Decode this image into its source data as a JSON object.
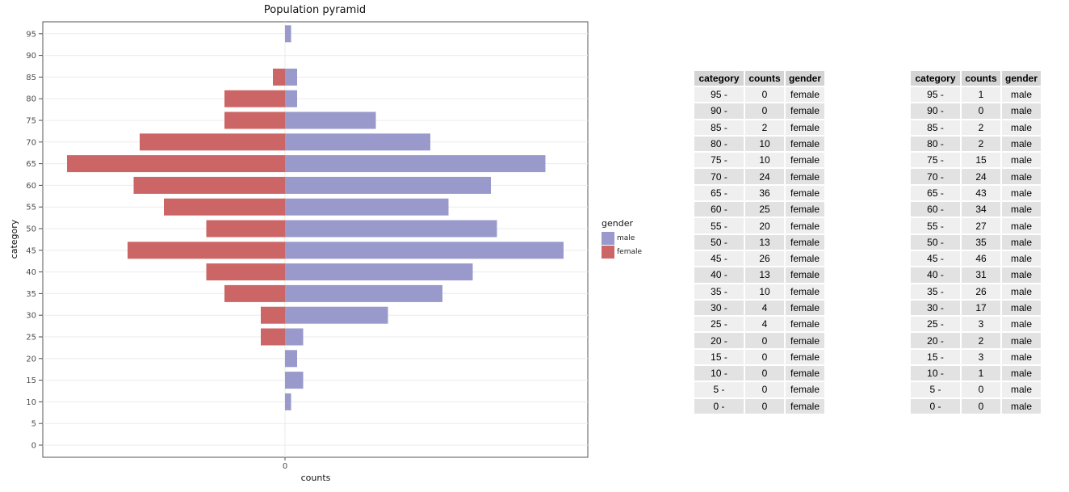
{
  "chart_data": {
    "type": "bar",
    "orientation": "horizontal",
    "title": "Population pyramid",
    "xlabel": "counts",
    "ylabel": "category",
    "xticks": [
      "0"
    ],
    "categories": [
      "0",
      "5",
      "10",
      "15",
      "20",
      "25",
      "30",
      "35",
      "40",
      "45",
      "50",
      "55",
      "60",
      "65",
      "70",
      "75",
      "80",
      "85",
      "90",
      "95"
    ],
    "series": [
      {
        "name": "female",
        "color": "#CC6666",
        "values": [
          0,
          0,
          0,
          0,
          0,
          4,
          4,
          10,
          13,
          26,
          13,
          20,
          25,
          36,
          24,
          10,
          10,
          2,
          0,
          0
        ]
      },
      {
        "name": "male",
        "color": "#9999CC",
        "values": [
          0,
          0,
          1,
          3,
          2,
          3,
          17,
          26,
          31,
          46,
          35,
          27,
          34,
          43,
          24,
          15,
          2,
          2,
          0,
          1
        ]
      }
    ],
    "legend": {
      "title": "gender",
      "entries": [
        "male",
        "female"
      ],
      "position": "right"
    },
    "grid": true
  },
  "tables": {
    "headers": [
      "category",
      "counts",
      "gender"
    ],
    "female": [
      [
        "95 -",
        "0",
        "female"
      ],
      [
        "90 -",
        "0",
        "female"
      ],
      [
        "85 -",
        "2",
        "female"
      ],
      [
        "80 -",
        "10",
        "female"
      ],
      [
        "75 -",
        "10",
        "female"
      ],
      [
        "70 -",
        "24",
        "female"
      ],
      [
        "65 -",
        "36",
        "female"
      ],
      [
        "60 -",
        "25",
        "female"
      ],
      [
        "55 -",
        "20",
        "female"
      ],
      [
        "50 -",
        "13",
        "female"
      ],
      [
        "45 -",
        "26",
        "female"
      ],
      [
        "40 -",
        "13",
        "female"
      ],
      [
        "35 -",
        "10",
        "female"
      ],
      [
        "30 -",
        "4",
        "female"
      ],
      [
        "25 -",
        "4",
        "female"
      ],
      [
        "20 -",
        "0",
        "female"
      ],
      [
        "15 -",
        "0",
        "female"
      ],
      [
        "10 -",
        "0",
        "female"
      ],
      [
        "5 -",
        "0",
        "female"
      ],
      [
        "0 -",
        "0",
        "female"
      ]
    ],
    "male": [
      [
        "95 -",
        "1",
        "male"
      ],
      [
        "90 -",
        "0",
        "male"
      ],
      [
        "85 -",
        "2",
        "male"
      ],
      [
        "80 -",
        "2",
        "male"
      ],
      [
        "75 -",
        "15",
        "male"
      ],
      [
        "70 -",
        "24",
        "male"
      ],
      [
        "65 -",
        "43",
        "male"
      ],
      [
        "60 -",
        "34",
        "male"
      ],
      [
        "55 -",
        "27",
        "male"
      ],
      [
        "50 -",
        "35",
        "male"
      ],
      [
        "45 -",
        "46",
        "male"
      ],
      [
        "40 -",
        "31",
        "male"
      ],
      [
        "35 -",
        "26",
        "male"
      ],
      [
        "30 -",
        "17",
        "male"
      ],
      [
        "25 -",
        "3",
        "male"
      ],
      [
        "20 -",
        "2",
        "male"
      ],
      [
        "15 -",
        "3",
        "male"
      ],
      [
        "10 -",
        "1",
        "male"
      ],
      [
        "5 -",
        "0",
        "male"
      ],
      [
        "0 -",
        "0",
        "male"
      ]
    ]
  }
}
